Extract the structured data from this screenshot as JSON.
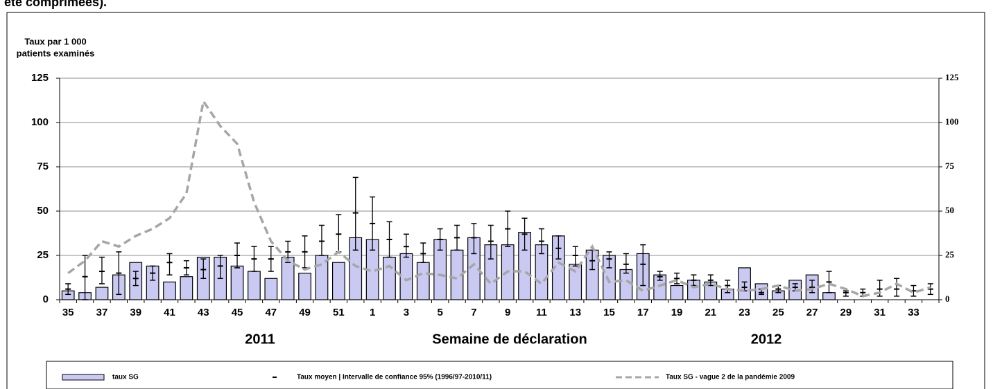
{
  "header_text": "été comprimées).",
  "chart_data": {
    "type": "bar",
    "ylabel": [
      "Taux par 1 000",
      "patients examinés"
    ],
    "xlabel": "Semaine de déclaration",
    "annotations": [
      "2011",
      "2012"
    ],
    "categories": [
      "35",
      null,
      "37",
      null,
      "39",
      null,
      "41",
      null,
      "43",
      null,
      "45",
      null,
      "47",
      null,
      "49",
      null,
      "51",
      null,
      "1",
      null,
      "3",
      null,
      "5",
      null,
      "7",
      null,
      "9",
      null,
      "11",
      null,
      "13",
      null,
      "15",
      null,
      "17",
      null,
      "19",
      null,
      "21",
      null,
      "23",
      null,
      "25",
      null,
      "27",
      null,
      "29",
      null,
      "31",
      null,
      "33",
      null
    ],
    "ylim": [
      0,
      125
    ],
    "yticks": [
      0,
      25,
      50,
      75,
      100,
      125
    ],
    "y2lim": [
      0,
      125
    ],
    "y2ticks": [
      0,
      25,
      50,
      75,
      100,
      125
    ],
    "grid": true,
    "legend": "bottom",
    "series": [
      {
        "name": "taux SG",
        "type": "bar",
        "color": "#c9c9f2",
        "values": [
          5,
          4,
          7,
          14,
          21,
          19,
          10,
          13,
          24,
          24,
          19,
          16,
          12,
          24,
          15,
          25,
          21,
          35,
          34,
          24,
          26,
          21,
          34,
          28,
          35,
          31,
          31,
          38,
          31,
          36,
          20,
          28,
          25,
          17,
          26,
          14,
          8,
          11,
          10,
          6,
          18,
          9,
          5,
          11,
          14,
          4,
          null,
          null,
          null,
          null,
          null,
          null
        ]
      },
      {
        "name": "Taux moyen | Intervalle de confiance 95% (1996/97-2010/11)",
        "type": "errorbar",
        "color": "#000000",
        "values": [
          6,
          13,
          16,
          15,
          12,
          15,
          21,
          18,
          17,
          19,
          25,
          23,
          23,
          27,
          27,
          33,
          37,
          49,
          43,
          34,
          30,
          26,
          34,
          35,
          35,
          33,
          40,
          37,
          33,
          29,
          25,
          22,
          23,
          20,
          20,
          13,
          12,
          11,
          11,
          8,
          7,
          4,
          6,
          7,
          7,
          10,
          4,
          4,
          6,
          6,
          5,
          6
        ],
        "lower": [
          3,
          0,
          9,
          3,
          8,
          11,
          14,
          14,
          12,
          12,
          18,
          16,
          16,
          21,
          18,
          25,
          27,
          28,
          28,
          24,
          24,
          21,
          28,
          28,
          26,
          23,
          30,
          28,
          26,
          23,
          19,
          17,
          18,
          15,
          8,
          11,
          9,
          8,
          8,
          4,
          5,
          3,
          4,
          5,
          4,
          4,
          2,
          2,
          2,
          2,
          2,
          3
        ],
        "upper": [
          9,
          25,
          24,
          27,
          16,
          19,
          26,
          22,
          23,
          25,
          32,
          30,
          30,
          33,
          36,
          42,
          48,
          69,
          58,
          44,
          37,
          32,
          40,
          42,
          43,
          42,
          50,
          46,
          40,
          36,
          30,
          28,
          27,
          26,
          31,
          16,
          15,
          14,
          14,
          11,
          10,
          6,
          8,
          9,
          11,
          16,
          5,
          6,
          11,
          12,
          8,
          9
        ]
      },
      {
        "name": "Taux SG - vague 2 de la pandémie 2009",
        "type": "line",
        "color": "#a6a6a6",
        "values": [
          15,
          22,
          33,
          30,
          36,
          40,
          46,
          60,
          112,
          98,
          88,
          55,
          33,
          22,
          17,
          20,
          27,
          19,
          16,
          19,
          11,
          15,
          14,
          12,
          20,
          9,
          16,
          16,
          9,
          21,
          16,
          30,
          10,
          11,
          5,
          8,
          11,
          7,
          9,
          6,
          5,
          6,
          8,
          5,
          6,
          9,
          6,
          2,
          4,
          9,
          4,
          7
        ]
      }
    ]
  }
}
